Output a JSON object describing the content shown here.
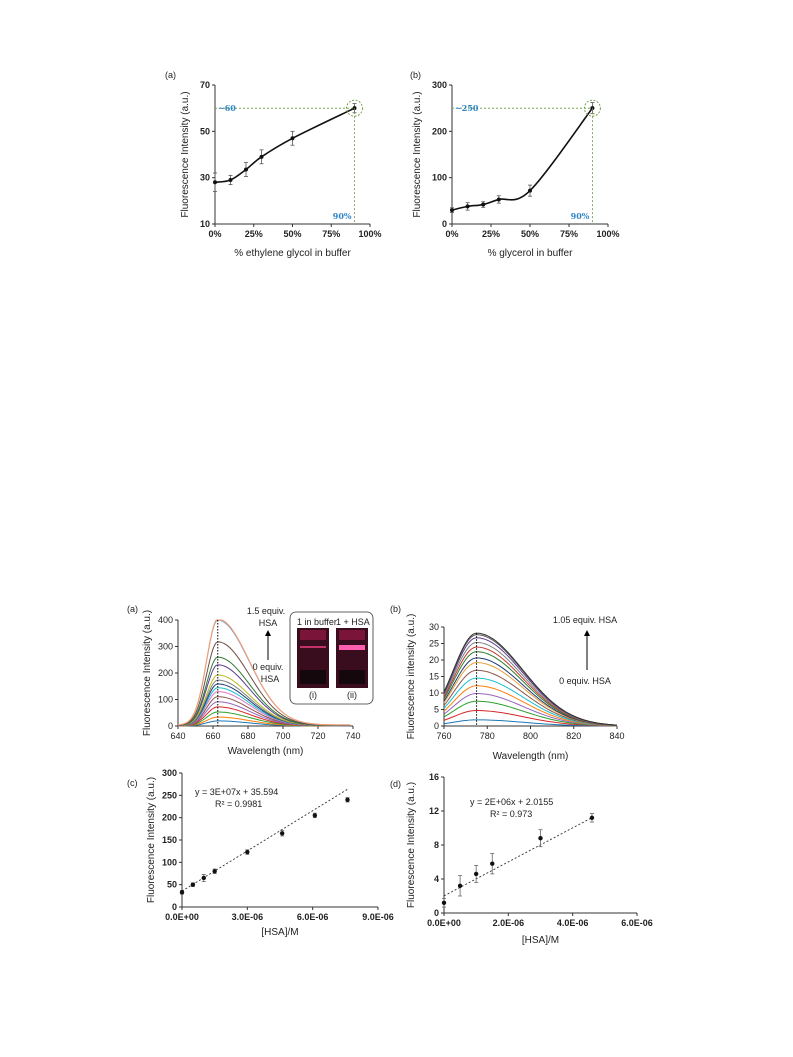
{
  "chart_data": [
    {
      "id": "a1",
      "type": "line",
      "panel_label": "(a)",
      "xlabel": "% ethylene glycol in buffer",
      "ylabel": "Fluorescence Intensity (a.u.)",
      "xlim": [
        0,
        100
      ],
      "ylim": [
        10,
        70
      ],
      "xticks": [
        "0%",
        "25%",
        "50%",
        "75%",
        "100%"
      ],
      "yticks": [
        "10",
        "30",
        "50",
        "70"
      ],
      "x": [
        0,
        10,
        20,
        30,
        50,
        90
      ],
      "y": [
        28,
        29,
        33.5,
        39,
        47,
        60
      ],
      "err": [
        4,
        2,
        3,
        3,
        3,
        2
      ],
      "annotations": {
        "y_value": "~60",
        "x_value": "90%"
      }
    },
    {
      "id": "b1",
      "type": "line",
      "panel_label": "(b)",
      "xlabel": "% glycerol in buffer",
      "ylabel": "Fluorescence Intensity (a.u.)",
      "xlim": [
        0,
        100
      ],
      "ylim": [
        0,
        300
      ],
      "xticks": [
        "0%",
        "25%",
        "50%",
        "75%",
        "100%"
      ],
      "yticks": [
        "0",
        "100",
        "200",
        "300"
      ],
      "x": [
        0,
        10,
        20,
        30,
        50,
        90
      ],
      "y": [
        30,
        38,
        42,
        53,
        72,
        250
      ],
      "err": [
        5,
        8,
        6,
        8,
        12,
        12
      ],
      "annotations": {
        "y_value": "~250",
        "x_value": "90%"
      }
    },
    {
      "id": "a2",
      "type": "line",
      "panel_label": "(a)",
      "xlabel": "Wavelength (nm)",
      "ylabel": "Fluorescence Intensity (a.u.)",
      "xlim": [
        640,
        750
      ],
      "ylim": [
        0,
        420
      ],
      "xticks": [
        "640",
        "660",
        "680",
        "700",
        "720",
        "740"
      ],
      "yticks": [
        "0",
        "100",
        "200",
        "300",
        "400"
      ],
      "peak_x": 665,
      "series_peaks": [
        20,
        35,
        55,
        75,
        95,
        115,
        135,
        150,
        165,
        180,
        200,
        240,
        270,
        330,
        415,
        420
      ],
      "series_colors": [
        "#1f77b4",
        "#ff7f0e",
        "#2ca02c",
        "#d62728",
        "#9467bd",
        "#8c564b",
        "#e377c2",
        "#17becf",
        "#1f3b73",
        "#7f7f7f",
        "#bcbd22",
        "#5c3c92",
        "#2e7d32",
        "#6d4c41",
        "#6fa8dc",
        "#ff9966"
      ],
      "labels": {
        "top": "1.5 equiv.",
        "top2": "HSA",
        "bottom": "0 equiv.",
        "bottom2": "HSA"
      },
      "inset": {
        "title_left": "1 in buffer",
        "title_right": "1 + HSA",
        "lane_left": "(i)",
        "lane_right": "(ii)"
      }
    },
    {
      "id": "b2",
      "type": "line",
      "panel_label": "(b)",
      "xlabel": "Wavelength (nm)",
      "ylabel": "Fluorescence intensity (a.u.)",
      "xlim": [
        760,
        845
      ],
      "ylim": [
        0,
        32
      ],
      "xticks": [
        "760",
        "780",
        "800",
        "820",
        "840"
      ],
      "yticks": [
        "0",
        "5",
        "10",
        "15",
        "20",
        "25",
        "30"
      ],
      "peak_x": 776,
      "series_peaks": [
        2,
        5,
        8,
        10.5,
        13,
        15.5,
        18,
        20.5,
        22,
        24,
        25.5,
        27,
        28.5,
        29.5,
        30
      ],
      "series_colors": [
        "#1f77b4",
        "#d62728",
        "#2ca02c",
        "#9467bd",
        "#ff7f0e",
        "#17becf",
        "#8c564b",
        "#e6a03c",
        "#1f3b73",
        "#2e7d32",
        "#c0392b",
        "#7f7f7f",
        "#5c3c92",
        "#555555",
        "#333333"
      ],
      "labels": {
        "top": "1.05 equiv. HSA",
        "bottom": "0 equiv. HSA"
      }
    },
    {
      "id": "c2",
      "type": "scatter",
      "panel_label": "(c)",
      "xlabel": "[HSA]/M",
      "ylabel": "Fluorescence Intensity (a.u.)",
      "xlim": [
        0,
        9e-06
      ],
      "ylim": [
        0,
        300
      ],
      "xticks": [
        "0.0E+00",
        "3.0E-06",
        "6.0E-06",
        "9.0E-06"
      ],
      "yticks": [
        "0",
        "50",
        "100",
        "150",
        "200",
        "250",
        "300"
      ],
      "x": [
        0,
        5e-07,
        1e-06,
        1.5e-06,
        3e-06,
        4.6e-06,
        6.1e-06,
        7.6e-06
      ],
      "y": [
        33,
        50,
        65,
        80,
        123,
        165,
        205,
        240
      ],
      "err": [
        4,
        4,
        8,
        5,
        5,
        6,
        5,
        5
      ],
      "fit": {
        "slope": 30000000.0,
        "intercept": 35.594
      },
      "equation": "y = 3E+07x + 35.594",
      "r2": "R² = 0.9981"
    },
    {
      "id": "d2",
      "type": "scatter",
      "panel_label": "(d)",
      "xlabel": "[HSA]/M",
      "ylabel": "Fluorescence Intensity (a.u.)",
      "xlim": [
        0,
        6e-06
      ],
      "ylim": [
        0,
        16
      ],
      "xticks": [
        "0.0E+00",
        "2.0E-06",
        "4.0E-06",
        "6.0E-06"
      ],
      "yticks": [
        "0",
        "4",
        "8",
        "12",
        "16"
      ],
      "x": [
        0,
        5e-07,
        1e-06,
        1.5e-06,
        3e-06,
        4.6e-06
      ],
      "y": [
        1.2,
        3.2,
        4.6,
        5.8,
        8.8,
        11.2
      ],
      "err": [
        0.5,
        1.2,
        1.0,
        1.2,
        1.0,
        0.5
      ],
      "fit": {
        "slope": 2000000.0,
        "intercept": 2.0155
      },
      "equation": "y = 2E+06x + 2.0155",
      "r2": "R² = 0.973"
    }
  ]
}
